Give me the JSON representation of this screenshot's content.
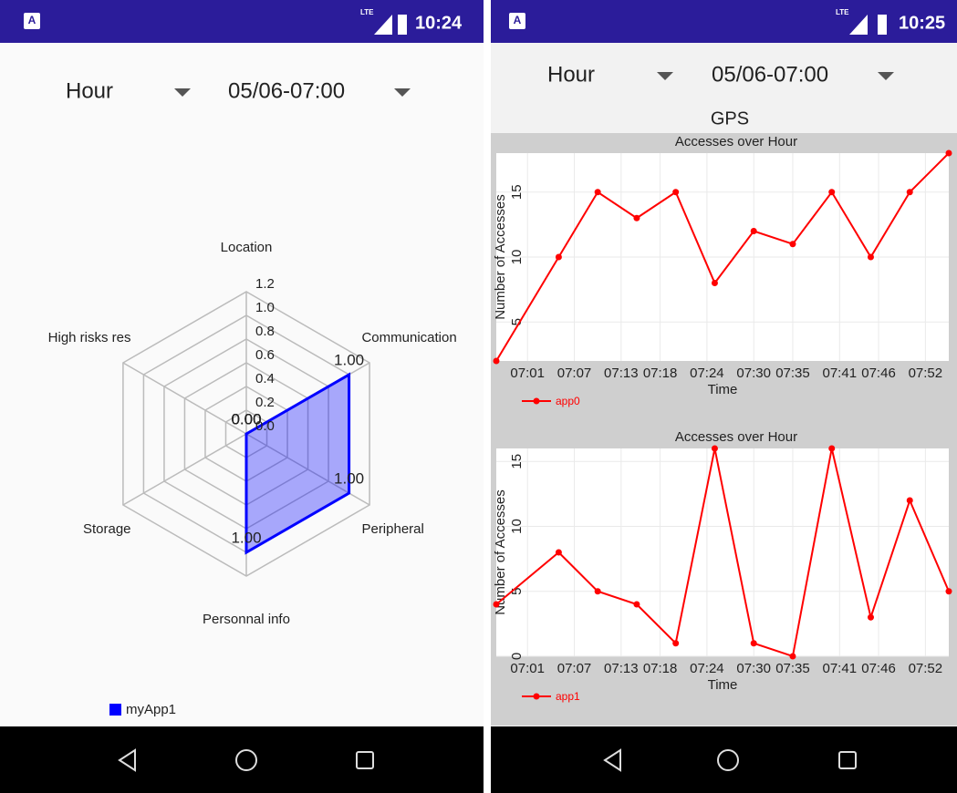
{
  "screens": [
    {
      "status_bar": {
        "network": "LTE",
        "time": "10:24"
      },
      "spinners": [
        "Hour",
        "05/06-07:00"
      ]
    },
    {
      "status_bar": {
        "network": "LTE",
        "time": "10:25"
      },
      "spinners": [
        "Hour",
        "05/06-07:00"
      ],
      "heading": "GPS"
    }
  ],
  "chart_data": [
    {
      "type": "radar",
      "categories": [
        "Location",
        "Communication",
        "Peripheral",
        "Personnal info",
        "Storage",
        "High risks res"
      ],
      "series": [
        {
          "name": "myApp1",
          "color": "#0000ff",
          "values": [
            0,
            1,
            1,
            1,
            0,
            0
          ],
          "value_labels": [
            "0.00",
            "1.00",
            "1.00",
            "1.00",
            "0.00",
            "0.00"
          ]
        }
      ],
      "ylim": [
        0,
        1.2
      ],
      "yticks": [
        {
          "value": 0,
          "label": "0.0"
        },
        0.2,
        0.4,
        0.6,
        0.8,
        {
          "value": 1,
          "label": "1.0"
        },
        1.2
      ],
      "grid": true,
      "legend": "bottom-left"
    },
    {
      "type": "line",
      "title": "Accesses over Hour",
      "xlabel": "Time",
      "ylabel": "Number of Accesses",
      "x": [
        "06:57",
        "07:05",
        "07:10",
        "07:15",
        "07:20",
        "07:25",
        "07:30",
        "07:35",
        "07:40",
        "07:45",
        "07:50",
        "07:55"
      ],
      "series": [
        {
          "name": "app0",
          "color": "#ff0000",
          "values": [
            2,
            10,
            15,
            13,
            15,
            8,
            12,
            11,
            15,
            10,
            15,
            18
          ]
        }
      ],
      "xlim": [
        "06:57",
        "07:55"
      ],
      "xticks": [
        "07:01",
        "07:07",
        "07:13",
        "07:18",
        "07:24",
        "07:30",
        "07:35",
        "07:41",
        "07:46",
        "07:52"
      ],
      "ylim": [
        2,
        18
      ],
      "yticks": [
        5,
        10,
        15
      ],
      "grid": true,
      "legend": "bottom-left"
    },
    {
      "type": "line",
      "title": "Accesses over Hour",
      "xlabel": "Time",
      "ylabel": "Number of Accesses",
      "x": [
        "06:57",
        "07:05",
        "07:10",
        "07:15",
        "07:20",
        "07:25",
        "07:30",
        "07:35",
        "07:40",
        "07:45",
        "07:50",
        "07:55"
      ],
      "series": [
        {
          "name": "app1",
          "color": "#ff0000",
          "values": [
            4,
            8,
            5,
            4,
            1,
            16,
            1,
            0,
            16,
            3,
            12,
            5
          ]
        }
      ],
      "xlim": [
        "06:57",
        "07:55"
      ],
      "xticks": [
        "07:01",
        "07:07",
        "07:13",
        "07:18",
        "07:24",
        "07:30",
        "07:35",
        "07:41",
        "07:46",
        "07:52"
      ],
      "ylim": [
        0,
        16
      ],
      "yticks": [
        0,
        5,
        10,
        15
      ],
      "grid": true,
      "legend": "bottom-left"
    }
  ]
}
